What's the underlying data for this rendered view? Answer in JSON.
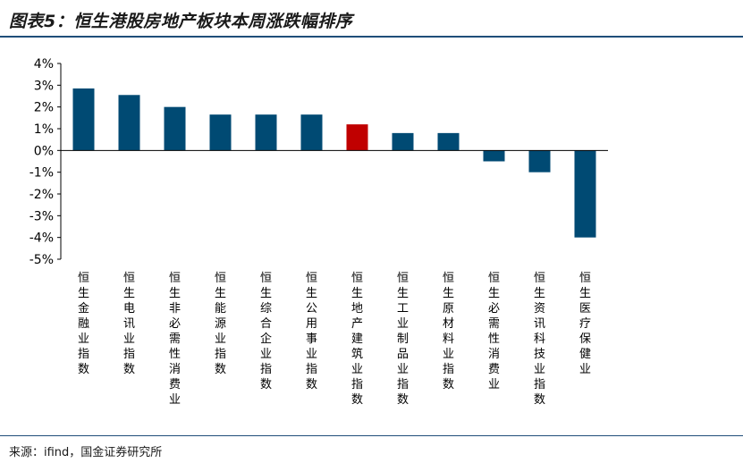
{
  "title": "图表5：恒生港股房地产板块本周涨跌幅排序",
  "source": "来源：ifind，国金证券研究所",
  "colors": {
    "bar": "#004a73",
    "highlight": "#c00000",
    "axis": "#000000",
    "rule": "#1f4e79"
  },
  "chart_data": {
    "type": "bar",
    "title": "",
    "xlabel": "",
    "ylabel": "",
    "ylim": [
      -5,
      4
    ],
    "yticks": [
      4,
      3,
      2,
      1,
      0,
      -1,
      -2,
      -3,
      -4,
      -5
    ],
    "ytick_labels": [
      "4%",
      "3%",
      "2%",
      "1%",
      "0%",
      "-1%",
      "-2%",
      "-3%",
      "-4%",
      "-5%"
    ],
    "grid": false,
    "highlight_index": 6,
    "categories": [
      "恒生金融业指数",
      "恒生电讯业指数",
      "恒生非必需性消费业",
      "恒生能源业指数",
      "恒生综合企业指数",
      "恒生公用事业指数",
      "恒生地产建筑业指数",
      "恒生工业制品业指数",
      "恒生原材料业指数",
      "恒生必需性消费业",
      "恒生资讯科技业指数",
      "恒生医疗保健业"
    ],
    "values": [
      2.85,
      2.55,
      2.0,
      1.65,
      1.65,
      1.65,
      1.2,
      0.8,
      0.8,
      -0.5,
      -1.0,
      -4.0
    ]
  }
}
